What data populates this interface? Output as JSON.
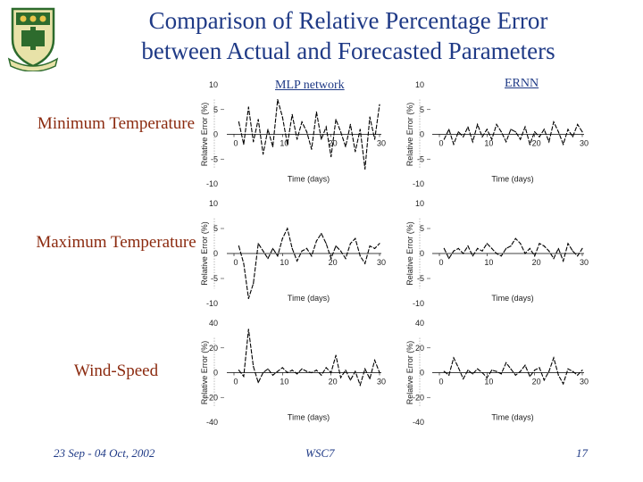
{
  "title_line1": "Comparison of Relative Percentage Error",
  "title_line2": "between Actual and Forecasted Parameters",
  "columns": [
    "MLP network",
    "ERNN"
  ],
  "footer": {
    "date": "23 Sep - 04 Oct, 2002",
    "event": "WSC7",
    "page": "17"
  },
  "colors": {
    "title": "#1f3a86",
    "row_label": "#8b2a0f",
    "line": "#000000",
    "logo": "#2d6b2d"
  },
  "logo_icon": "university-crest-icon",
  "chart_data": [
    {
      "type": "line",
      "row": "Minimum Temperature",
      "column": "MLP network",
      "ylabel": "Relative Error (%)",
      "xlabel": "Time (days)",
      "xlim": [
        0,
        30
      ],
      "ylim": [
        -10,
        10
      ],
      "xticks": [
        0,
        10,
        20,
        30
      ],
      "yticks": [
        10,
        5,
        0,
        -5,
        -10
      ],
      "x": [
        1,
        2,
        3,
        4,
        5,
        6,
        7,
        8,
        9,
        10,
        11,
        12,
        13,
        14,
        15,
        16,
        17,
        18,
        19,
        20,
        21,
        22,
        23,
        24,
        25,
        26,
        27,
        28,
        29,
        30
      ],
      "y": [
        2.5,
        -2,
        5.5,
        -1.5,
        3,
        -4,
        1,
        -2.5,
        7,
        3.5,
        -2,
        4,
        -1,
        2.5,
        0.5,
        -3,
        4.5,
        -1,
        1.5,
        -4.5,
        3,
        0.5,
        -2.5,
        2,
        -3.5,
        1,
        -7,
        3.5,
        -1,
        6
      ]
    },
    {
      "type": "line",
      "row": "Minimum Temperature",
      "column": "ERNN",
      "ylabel": "Relative Error (%)",
      "xlabel": "Time (days)",
      "xlim": [
        0,
        30
      ],
      "ylim": [
        -10,
        10
      ],
      "xticks": [
        0,
        10,
        20,
        30
      ],
      "yticks": [
        10,
        5,
        0,
        -5,
        -10
      ],
      "x": [
        1,
        2,
        3,
        4,
        5,
        6,
        7,
        8,
        9,
        10,
        11,
        12,
        13,
        14,
        15,
        16,
        17,
        18,
        19,
        20,
        21,
        22,
        23,
        24,
        25,
        26,
        27,
        28,
        29,
        30
      ],
      "y": [
        -1,
        1,
        -2,
        0.5,
        -0.5,
        1.5,
        -1.5,
        2,
        -0.5,
        1,
        -1,
        2,
        0.5,
        -1.5,
        1,
        0.5,
        -1,
        1.5,
        -2,
        0.5,
        -0.5,
        1,
        -1.5,
        2.5,
        0.5,
        -2,
        1,
        -0.5,
        2,
        0.5
      ]
    },
    {
      "type": "line",
      "row": "Maximum Temperature",
      "column": "MLP network",
      "ylabel": "Relative Error (%)",
      "xlabel": "Time (days)",
      "xlim": [
        0,
        30
      ],
      "ylim": [
        -10,
        10
      ],
      "xticks": [
        0,
        10,
        20,
        30
      ],
      "yticks": [
        10,
        5,
        0,
        -5,
        -10
      ],
      "x": [
        1,
        2,
        3,
        4,
        5,
        6,
        7,
        8,
        9,
        10,
        11,
        12,
        13,
        14,
        15,
        16,
        17,
        18,
        19,
        20,
        21,
        22,
        23,
        24,
        25,
        26,
        27,
        28,
        29,
        30
      ],
      "y": [
        1.5,
        -2,
        -9,
        -6,
        2,
        0.5,
        -1,
        1,
        -0.5,
        3,
        5,
        1,
        -1.5,
        0.5,
        1,
        -0.5,
        2.5,
        4,
        2,
        -1,
        1.5,
        0.5,
        -1,
        2,
        3,
        -0.5,
        -2,
        1.5,
        1,
        2
      ]
    },
    {
      "type": "line",
      "row": "Maximum Temperature",
      "column": "ERNN",
      "ylabel": "Relative Error (%)",
      "xlabel": "Time (days)",
      "xlim": [
        0,
        30
      ],
      "ylim": [
        -10,
        10
      ],
      "xticks": [
        0,
        10,
        20,
        30
      ],
      "yticks": [
        10,
        5,
        0,
        -5,
        -10
      ],
      "x": [
        1,
        2,
        3,
        4,
        5,
        6,
        7,
        8,
        9,
        10,
        11,
        12,
        13,
        14,
        15,
        16,
        17,
        18,
        19,
        20,
        21,
        22,
        23,
        24,
        25,
        26,
        27,
        28,
        29,
        30
      ],
      "y": [
        1,
        -1,
        0.5,
        1,
        0,
        1.5,
        -0.5,
        1,
        0.5,
        2,
        1,
        0,
        -0.5,
        1,
        1.5,
        3,
        2,
        0,
        1,
        -0.5,
        2,
        1.5,
        0.5,
        -1,
        1,
        -1.5,
        2,
        0.5,
        -0.5,
        1
      ]
    },
    {
      "type": "line",
      "row": "Wind-Speed",
      "column": "MLP network",
      "ylabel": "Relative Error (%)",
      "xlabel": "Time (days)",
      "xlim": [
        0,
        30
      ],
      "ylim": [
        -40,
        40
      ],
      "xticks": [
        0,
        10,
        20,
        30
      ],
      "yticks": [
        40,
        20,
        0,
        -20,
        -40
      ],
      "x": [
        1,
        2,
        3,
        4,
        5,
        6,
        7,
        8,
        9,
        10,
        11,
        12,
        13,
        14,
        15,
        16,
        17,
        18,
        19,
        20,
        21,
        22,
        23,
        24,
        25,
        26,
        27,
        28,
        29,
        30
      ],
      "y": [
        2,
        -3,
        35,
        5,
        -8,
        0,
        3,
        -2,
        1,
        4,
        0,
        2,
        -1,
        3,
        1,
        0,
        2,
        -2,
        4,
        0,
        14,
        -4,
        2,
        -6,
        1,
        -10,
        3,
        -5,
        10,
        0
      ]
    },
    {
      "type": "line",
      "row": "Wind-Speed",
      "column": "ERNN",
      "ylabel": "Relative Error (%)",
      "xlabel": "Time (days)",
      "xlim": [
        0,
        30
      ],
      "ylim": [
        -40,
        40
      ],
      "xticks": [
        0,
        10,
        20,
        30
      ],
      "yticks": [
        40,
        20,
        0,
        -20,
        -40
      ],
      "x": [
        1,
        2,
        3,
        4,
        5,
        6,
        7,
        8,
        9,
        10,
        11,
        12,
        13,
        14,
        15,
        16,
        17,
        18,
        19,
        20,
        21,
        22,
        23,
        24,
        25,
        26,
        27,
        28,
        29,
        30
      ],
      "y": [
        1,
        -2,
        12,
        4,
        -5,
        2,
        -1,
        3,
        0,
        -4,
        2,
        1,
        -1,
        8,
        3,
        -2,
        1,
        6,
        -3,
        2,
        4,
        -6,
        1,
        12,
        -2,
        -9,
        3,
        1,
        -2,
        2
      ]
    }
  ]
}
